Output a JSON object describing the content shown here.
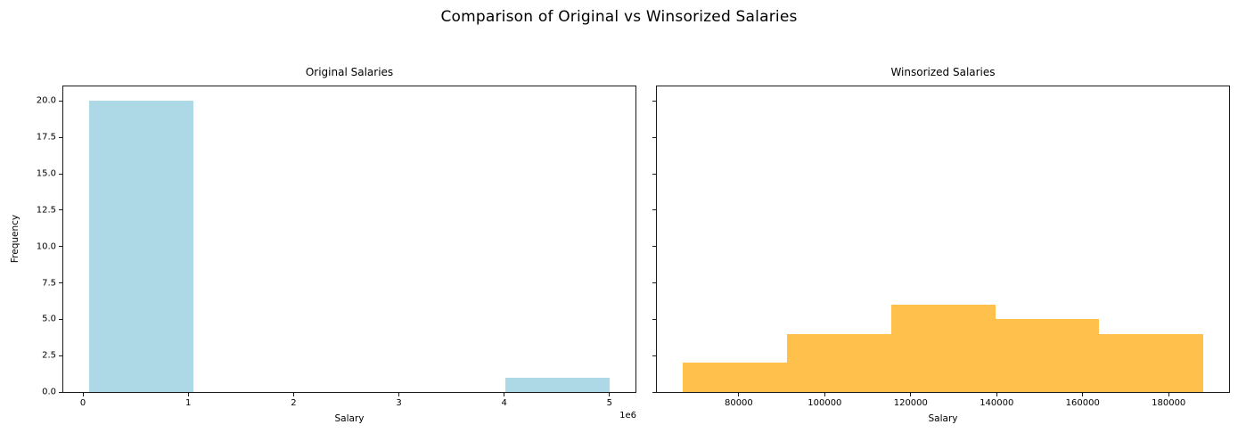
{
  "figure": {
    "suptitle": "Comparison of Original vs Winsorized Salaries",
    "background": "#ffffff",
    "text_color": "#000000",
    "spine_color": "#1a1a1a"
  },
  "chart_data": [
    {
      "type": "bar",
      "subtype": "histogram",
      "title": "Original Salaries",
      "xlabel": "Salary",
      "ylabel": "Frequency",
      "offset_text": "1e6",
      "color": "#add8e6",
      "bin_edges": [
        60000,
        1048000,
        2036000,
        3024000,
        4012000,
        5000000
      ],
      "counts": [
        20,
        0,
        0,
        0,
        1
      ],
      "xlim": [
        -187000,
        5247000
      ],
      "ylim": [
        0,
        21
      ],
      "grid": false,
      "legend": null,
      "xticks": {
        "values": [
          0,
          1000000,
          2000000,
          3000000,
          4000000,
          5000000
        ],
        "labels": [
          "0",
          "1",
          "2",
          "3",
          "4",
          "5"
        ]
      },
      "yticks": {
        "values": [
          0,
          2.5,
          5,
          7.5,
          10,
          12.5,
          15,
          17.5,
          20
        ],
        "labels": [
          "0.0",
          "2.5",
          "5.0",
          "7.5",
          "10.0",
          "12.5",
          "15.0",
          "17.5",
          "20.0"
        ],
        "labels_visible": true
      }
    },
    {
      "type": "bar",
      "subtype": "histogram",
      "title": "Winsorized Salaries",
      "xlabel": "Salary",
      "ylabel": null,
      "offset_text": null,
      "color": "#ffc04c",
      "bin_edges": [
        67000,
        91220,
        115440,
        139660,
        163880,
        188100
      ],
      "counts": [
        2,
        4,
        6,
        5,
        4
      ],
      "xlim": [
        60950,
        194050
      ],
      "ylim": [
        0,
        21
      ],
      "grid": false,
      "legend": null,
      "xticks": {
        "values": [
          80000,
          100000,
          120000,
          140000,
          160000,
          180000
        ],
        "labels": [
          "80000",
          "100000",
          "120000",
          "140000",
          "160000",
          "180000"
        ]
      },
      "yticks": {
        "values": [
          0,
          2.5,
          5,
          7.5,
          10,
          12.5,
          15,
          17.5,
          20
        ],
        "labels": [],
        "labels_visible": false
      }
    }
  ]
}
